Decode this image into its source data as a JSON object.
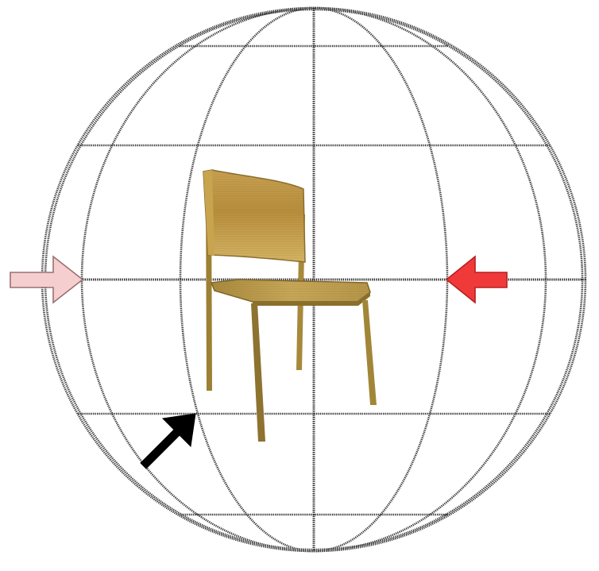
{
  "diagram": {
    "colors": {
      "background": "#ffffff",
      "grid": "#3a3a3a",
      "arrow_left_fill": "#f5cfcf",
      "arrow_left_stroke": "#9a7070",
      "arrow_right_fill": "#f03a3a",
      "arrow_right_stroke": "#b52020",
      "arrow_bottom_fill": "#000000",
      "chair_wood_light": "#d4b060",
      "chair_wood_mid": "#b8923e",
      "chair_wood_dark": "#7c6428"
    },
    "elements": {
      "sphere": "wireframe-sphere",
      "object": "wooden-chair",
      "arrows": [
        {
          "name": "arrow-left",
          "color": "pink",
          "direction": "right"
        },
        {
          "name": "arrow-right",
          "color": "red",
          "direction": "left"
        },
        {
          "name": "arrow-bottom-left",
          "color": "black",
          "direction": "up-right"
        }
      ]
    }
  }
}
